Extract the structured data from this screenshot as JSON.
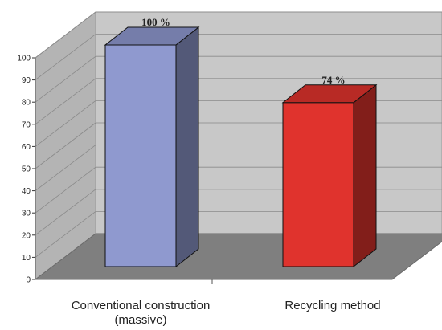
{
  "chart_data": {
    "type": "bar",
    "three_d": true,
    "categories": [
      "Conventional construction\n(massive)",
      "Recycling method"
    ],
    "values": [
      100,
      74
    ],
    "data_labels": [
      "100 %",
      "74 %"
    ],
    "colors": [
      "#8f99cf",
      "#e0332d"
    ],
    "ylim": [
      0,
      100
    ],
    "yticks": [
      0,
      10,
      20,
      30,
      40,
      50,
      60,
      70,
      80,
      90,
      100
    ],
    "grid": true,
    "title": "",
    "xlabel": "",
    "ylabel": ""
  }
}
